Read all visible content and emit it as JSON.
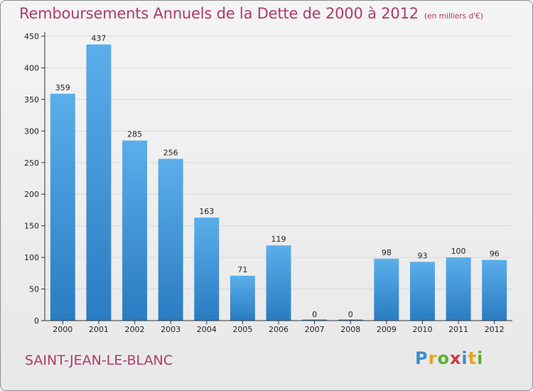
{
  "header": {
    "title": "Remboursements Annuels de la Dette de 2000 à 2012",
    "unit": "(en milliers d'€)"
  },
  "footer": {
    "town": "SAINT-JEAN-LE-BLANC",
    "logo_text": "Proxiti"
  },
  "colors": {
    "bar_top": "#5aaeea",
    "bar_bottom": "#2a7cc2",
    "title": "#b03a6a",
    "grid": "#d9d9d9"
  },
  "chart_data": {
    "type": "bar",
    "title": "Remboursements Annuels de la Dette de 2000 à 2012",
    "subtitle": "(en milliers d'€)",
    "xlabel": "",
    "ylabel": "",
    "categories": [
      "2000",
      "2001",
      "2002",
      "2003",
      "2004",
      "2005",
      "2006",
      "2007",
      "2008",
      "2009",
      "2010",
      "2011",
      "2012"
    ],
    "values": [
      359,
      437,
      285,
      256,
      163,
      71,
      119,
      0,
      0,
      98,
      93,
      100,
      96
    ],
    "ylim": [
      0,
      450
    ],
    "yticks": [
      0,
      50,
      100,
      150,
      200,
      250,
      300,
      350,
      400,
      450
    ],
    "grid": true,
    "legend": "none"
  }
}
